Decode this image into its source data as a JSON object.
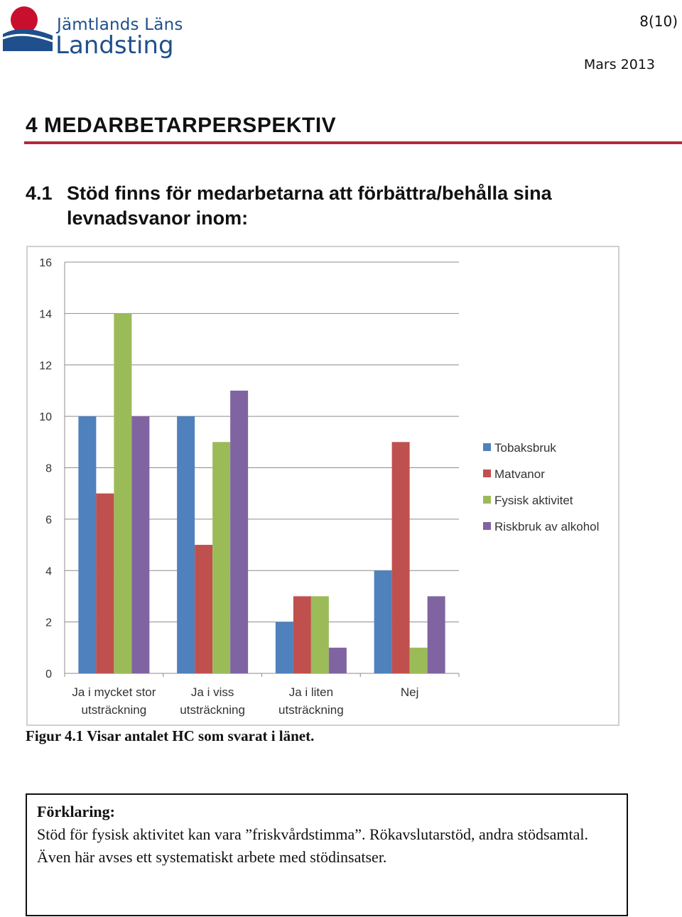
{
  "header": {
    "logo_line1": "Jämtlands Läns",
    "logo_line2": "Landsting",
    "page_number": "8(10)",
    "date": "Mars 2013"
  },
  "section": {
    "heading": "4  MEDARBETARPERSPEKTIV",
    "subheading_number": "4.1",
    "subheading_text": "Stöd finns för medarbetarna att förbättra/behålla sina levnadsvanor inom:"
  },
  "colors": {
    "rule": "#b22a3c",
    "Tobaksbruk": "#4f81bd",
    "Matvanor": "#c0504d",
    "Fysisk aktivitet": "#9bbb59",
    "Riskbruk av alkohol": "#8064a2"
  },
  "chart_data": {
    "type": "bar",
    "categories": [
      [
        "Ja i mycket stor",
        "utsträckning"
      ],
      [
        "Ja i viss",
        "utsträckning"
      ],
      [
        "Ja i liten",
        "utsträckning"
      ],
      [
        "Nej"
      ]
    ],
    "series": [
      {
        "name": "Tobaksbruk",
        "values": [
          10,
          10,
          2,
          4
        ]
      },
      {
        "name": "Matvanor",
        "values": [
          7,
          5,
          3,
          9
        ]
      },
      {
        "name": "Fysisk aktivitet",
        "values": [
          14,
          9,
          3,
          1
        ]
      },
      {
        "name": "Riskbruk av alkohol",
        "values": [
          10,
          11,
          1,
          3
        ]
      }
    ],
    "yticks": [
      0,
      2,
      4,
      6,
      8,
      10,
      12,
      14,
      16
    ],
    "ylim": [
      0,
      16
    ],
    "grid": true,
    "legend": "right",
    "title": "",
    "xlabel": "",
    "ylabel": ""
  },
  "caption": "Figur 4.1 Visar antalet HC som svarat i länet.",
  "explanation": {
    "title": "Förklaring:",
    "body": "Stöd för fysisk aktivitet kan vara ”friskvårdstimma”. Rökavslutarstöd, andra stödsamtal. Även här avses ett systematiskt arbete med stödinsatser."
  }
}
